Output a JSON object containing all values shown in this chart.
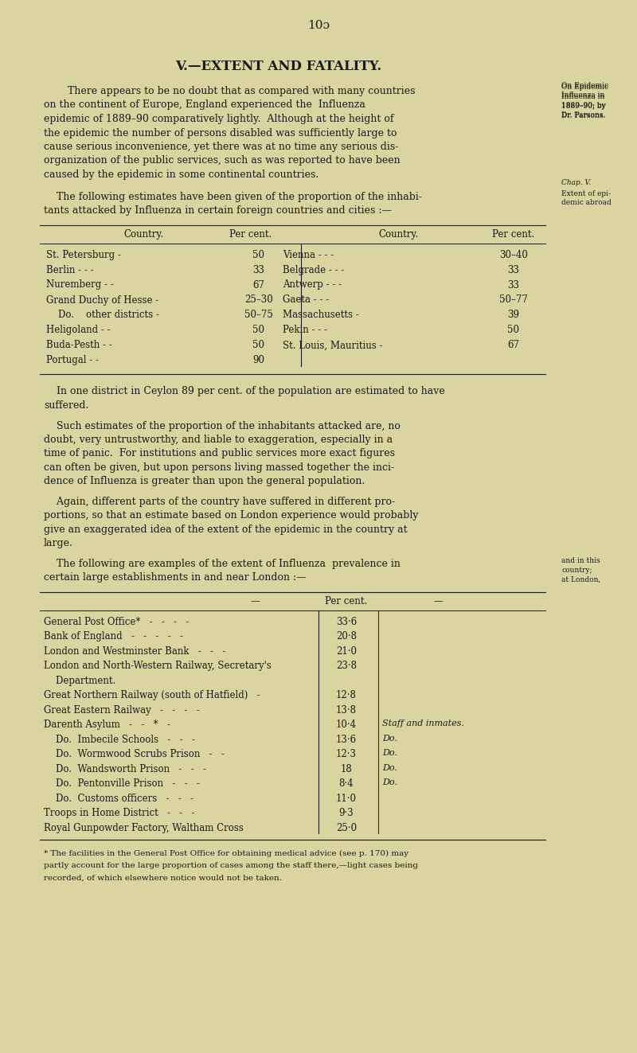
{
  "bg_color": "#d9d4a0",
  "page_number": "10ɔ",
  "chapter_title": "V.—EXTENT AND FATALITY.",
  "para1": "There appears to be no doubt that as compared with many countries on the continent of Europe, England experienced the Influenza epidemic of 1889–90 comparatively lightly.  Although at the height of the epidemic the number of persons disabled was sufficiently large to cause serious inconvenience, yet there was at no time any serious dis-organization of the public services, such as was reported to have been caused by the epidemic in some continental countries.",
  "para2": "The following estimates have been given of the proportion of the inhabi-tants attacked by Influenza in certain foreign countries and cities :—",
  "sidebar1a": "On Epidemic\nInfluenza in\n1889–90; by\nDr. Parsons.",
  "sidebar1b": "Chap. V.",
  "sidebar2": "Extent of epi-\ndemic abroad",
  "table1_headers": [
    "Country.",
    "Per cent.",
    "Country.",
    "Per cent."
  ],
  "table1_rows": [
    [
      "St. Petersburg -",
      "50",
      "Vienna - - -",
      "30–40"
    ],
    [
      "Berlin - - -",
      "33",
      "Belgrade - - -",
      "33"
    ],
    [
      "Nuremberg - -",
      "67",
      "Antwerp - - -",
      "33"
    ],
    [
      "Grand Duchy of Hesse -",
      "25–30",
      "Gaeta - - -",
      "50–77"
    ],
    [
      "    Do.    other districts -",
      "50–75",
      "Massachusetts -",
      "39"
    ],
    [
      "Heligoland - -",
      "50",
      "Pekin - - -",
      "50"
    ],
    [
      "Buda-Pesth - -",
      "50",
      "St. Louis, Mauritius -",
      "67"
    ],
    [
      "Portugal - -",
      "90",
      "",
      ""
    ]
  ],
  "ceylon_note": "In one district in Ceylon 89 per cent. of the population are estimated to have suffered.",
  "para3a": "Such estimates of the proportion of the inhabitants attacked are, no doubt, very untrustworthy, and liable to exaggeration, especially in a time of panic.  For institutions and public services more exact figures can often be given, but upon persons living massed together the inci-dence of Influenza is greater than upon the general population.",
  "para3b": "Again, different parts of the country have suffered in different pro-portions, so that an estimate based on London experience would probably give an exaggerated idea of the extent of the epidemic in the country at large.",
  "para4": "The following are examples of the extent of Influenza prevalence in certain large establishments in and near London :—",
  "sidebar3": "and in this\ncountry;\nat London,",
  "table2_headers": [
    "—",
    "Per cent.",
    "—"
  ],
  "table2_rows": [
    [
      "General Post Office*   -   -   -   -",
      "33·6",
      ""
    ],
    [
      "Bank of England   -   -   -   -   -",
      "20·8",
      ""
    ],
    [
      "London and Westminster Bank   -   -   -",
      "21·0",
      ""
    ],
    [
      "London and North-Western Railway, Secretary's",
      "23·8",
      ""
    ],
    [
      "    Department.",
      "",
      ""
    ],
    [
      "Great Northern Railway (south of Hatfield)   -",
      "12·8",
      ""
    ],
    [
      "Great Eastern Railway   -   -   -   -",
      "13·8",
      ""
    ],
    [
      "Darenth Asylum   -   -   *   -",
      "10·4",
      "Staff and inmates."
    ],
    [
      "    Do.  Imbecile Schools   -   -   -",
      "13·6",
      "Do."
    ],
    [
      "    Do.  Wormwood Scrubs Prison   -   -",
      "12·3",
      "Do."
    ],
    [
      "    Do.  Wandsworth Prison   -   -   -",
      "18",
      "Do."
    ],
    [
      "    Do.  Pentonville Prison   -   -   -",
      "8·4",
      "Do."
    ],
    [
      "    Do.  Customs officers   -   -   -",
      "11·0",
      ""
    ],
    [
      "Troops in Home District   -   -   -",
      "9·3",
      ""
    ],
    [
      "Royal Gunpowder Factory, Waltham Cross",
      "25·0",
      ""
    ]
  ],
  "footnote": "* The facilities in the General Post Office for obtaining medical advice (see p. 170) may partly account for the large proportion of cases among the staff there,—light cases being recorded, of which elsewhere notice would not be taken."
}
